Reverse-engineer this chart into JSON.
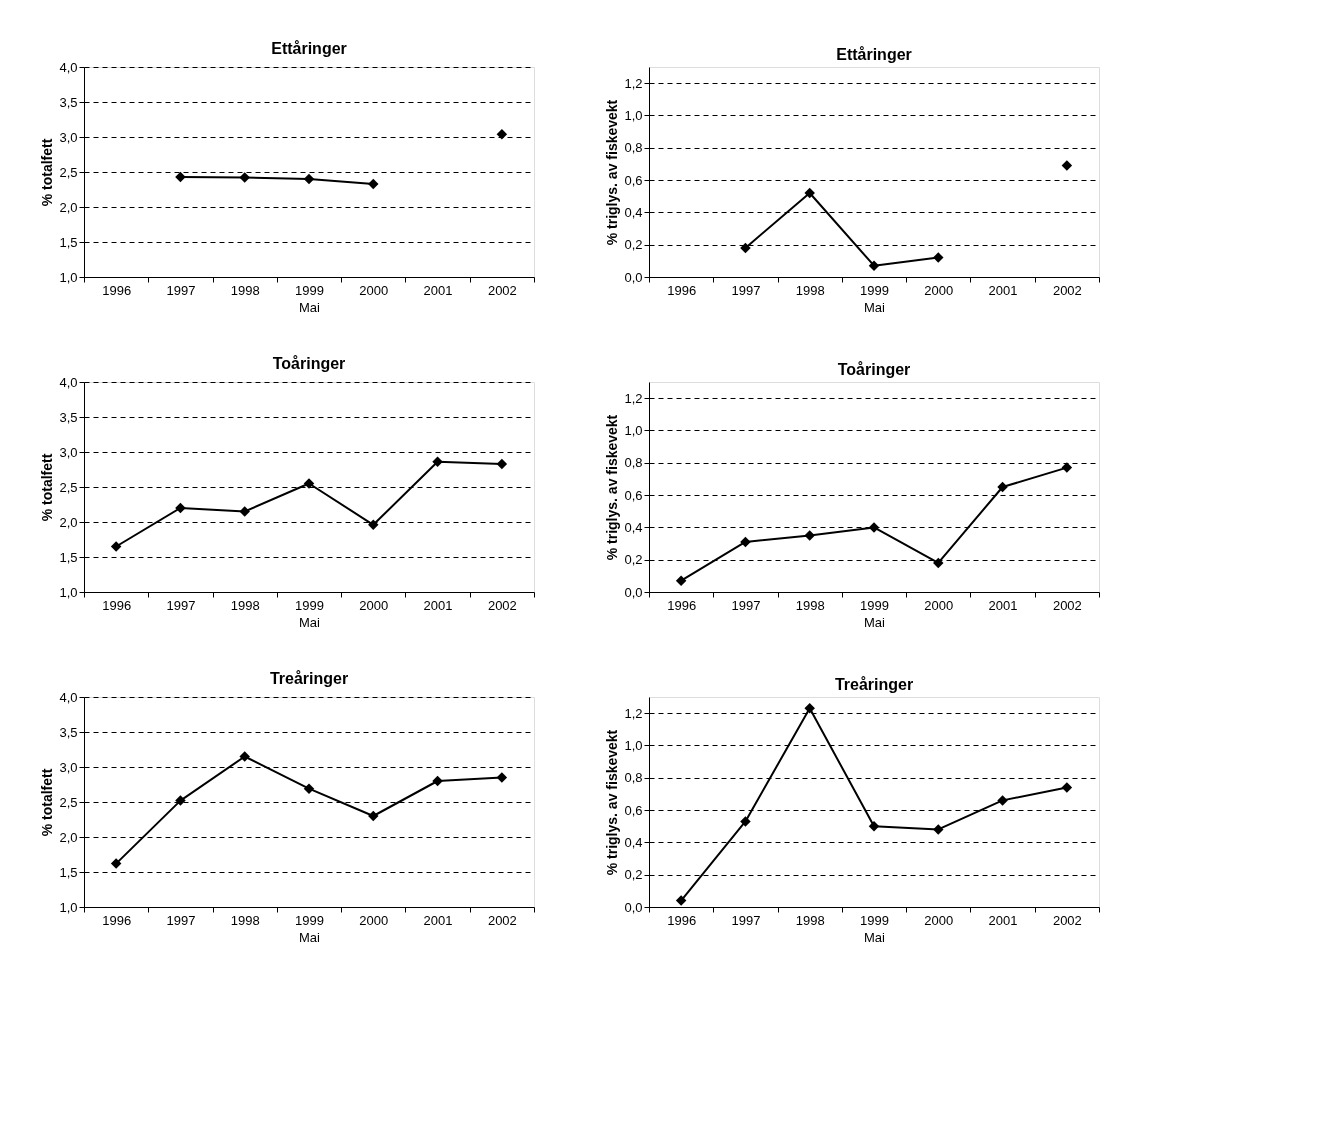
{
  "chart_data": [
    {
      "type": "line",
      "title": "Ettåringer",
      "xlabel": "Mai",
      "ylabel": "% totalfett",
      "categories": [
        "1996",
        "1997",
        "1998",
        "1999",
        "2000",
        "2001",
        "2002"
      ],
      "series": [
        {
          "color": "#000000",
          "values": [
            null,
            2.43,
            2.42,
            2.4,
            2.33,
            null,
            3.04
          ]
        }
      ],
      "ylim": [
        1,
        4
      ],
      "yticks": [
        {
          "value": 1,
          "label": "1,0"
        },
        {
          "value": 1.5,
          "label": "1,5"
        },
        {
          "value": 2,
          "label": "2,0"
        },
        {
          "value": 2.5,
          "label": "2,5"
        },
        {
          "value": 3,
          "label": "3,0"
        },
        {
          "value": 3.5,
          "label": "3,5"
        },
        {
          "value": 4,
          "label": "4,0"
        }
      ],
      "grid": "y",
      "marker": "diamond",
      "line_style": "solid"
    },
    {
      "type": "line",
      "title": "Ettåringer",
      "xlabel": "Mai",
      "ylabel": "% triglys. av fiskevekt",
      "categories": [
        "1996",
        "1997",
        "1998",
        "1999",
        "2000",
        "2001",
        "2002"
      ],
      "series": [
        {
          "color": "#000000",
          "values": [
            null,
            0.18,
            0.52,
            0.07,
            0.12,
            null,
            0.69
          ]
        }
      ],
      "ylim": [
        0,
        1.3
      ],
      "yticks": [
        {
          "value": 0,
          "label": "0,0"
        },
        {
          "value": 0.2,
          "label": "0,2"
        },
        {
          "value": 0.4,
          "label": "0,4"
        },
        {
          "value": 0.6,
          "label": "0,6"
        },
        {
          "value": 0.8,
          "label": "0,8"
        },
        {
          "value": 1,
          "label": "1,0"
        },
        {
          "value": 1.2,
          "label": "1,2"
        }
      ],
      "grid": "y",
      "marker": "diamond",
      "line_style": "solid"
    },
    {
      "type": "line",
      "title": "Toåringer",
      "xlabel": "Mai",
      "ylabel": "% totalfett",
      "categories": [
        "1996",
        "1997",
        "1998",
        "1999",
        "2000",
        "2001",
        "2002"
      ],
      "series": [
        {
          "color": "#000000",
          "values": [
            1.65,
            2.2,
            2.15,
            2.55,
            1.96,
            2.86,
            2.83
          ]
        }
      ],
      "ylim": [
        1,
        4
      ],
      "yticks": [
        {
          "value": 1,
          "label": "1,0"
        },
        {
          "value": 1.5,
          "label": "1,5"
        },
        {
          "value": 2,
          "label": "2,0"
        },
        {
          "value": 2.5,
          "label": "2,5"
        },
        {
          "value": 3,
          "label": "3,0"
        },
        {
          "value": 3.5,
          "label": "3,5"
        },
        {
          "value": 4,
          "label": "4,0"
        }
      ],
      "grid": "y",
      "marker": "diamond",
      "line_style": "solid"
    },
    {
      "type": "line",
      "title": "Toåringer",
      "xlabel": "Mai",
      "ylabel": "% triglys. av fiskevekt",
      "categories": [
        "1996",
        "1997",
        "1998",
        "1999",
        "2000",
        "2001",
        "2002"
      ],
      "series": [
        {
          "color": "#000000",
          "values": [
            0.07,
            0.31,
            0.35,
            0.4,
            0.18,
            0.65,
            0.77
          ]
        }
      ],
      "ylim": [
        0,
        1.3
      ],
      "yticks": [
        {
          "value": 0,
          "label": "0,0"
        },
        {
          "value": 0.2,
          "label": "0,2"
        },
        {
          "value": 0.4,
          "label": "0,4"
        },
        {
          "value": 0.6,
          "label": "0,6"
        },
        {
          "value": 0.8,
          "label": "0,8"
        },
        {
          "value": 1,
          "label": "1,0"
        },
        {
          "value": 1.2,
          "label": "1,2"
        }
      ],
      "grid": "y",
      "marker": "diamond",
      "line_style": "solid"
    },
    {
      "type": "line",
      "title": "Treåringer",
      "xlabel": "Mai",
      "ylabel": "% totalfett",
      "categories": [
        "1996",
        "1997",
        "1998",
        "1999",
        "2000",
        "2001",
        "2002"
      ],
      "series": [
        {
          "color": "#000000",
          "values": [
            1.62,
            2.52,
            3.15,
            2.69,
            2.3,
            2.8,
            2.85
          ]
        }
      ],
      "ylim": [
        1,
        4
      ],
      "yticks": [
        {
          "value": 1,
          "label": "1,0"
        },
        {
          "value": 1.5,
          "label": "1,5"
        },
        {
          "value": 2,
          "label": "2,0"
        },
        {
          "value": 2.5,
          "label": "2,5"
        },
        {
          "value": 3,
          "label": "3,0"
        },
        {
          "value": 3.5,
          "label": "3,5"
        },
        {
          "value": 4,
          "label": "4,0"
        }
      ],
      "grid": "y",
      "marker": "diamond",
      "line_style": "solid"
    },
    {
      "type": "line",
      "title": "Treåringer",
      "xlabel": "Mai",
      "ylabel": "% triglys. av fiskevekt",
      "categories": [
        "1996",
        "1997",
        "1998",
        "1999",
        "2000",
        "2001",
        "2002"
      ],
      "series": [
        {
          "color": "#000000",
          "values": [
            0.04,
            0.53,
            1.23,
            0.5,
            0.48,
            0.66,
            0.74
          ]
        }
      ],
      "ylim": [
        0,
        1.3
      ],
      "yticks": [
        {
          "value": 0,
          "label": "0,0"
        },
        {
          "value": 0.2,
          "label": "0,2"
        },
        {
          "value": 0.4,
          "label": "0,4"
        },
        {
          "value": 0.6,
          "label": "0,6"
        },
        {
          "value": 0.8,
          "label": "0,8"
        },
        {
          "value": 1,
          "label": "1,0"
        },
        {
          "value": 1.2,
          "label": "1,2"
        }
      ],
      "grid": "y",
      "marker": "diamond",
      "line_style": "solid"
    }
  ]
}
